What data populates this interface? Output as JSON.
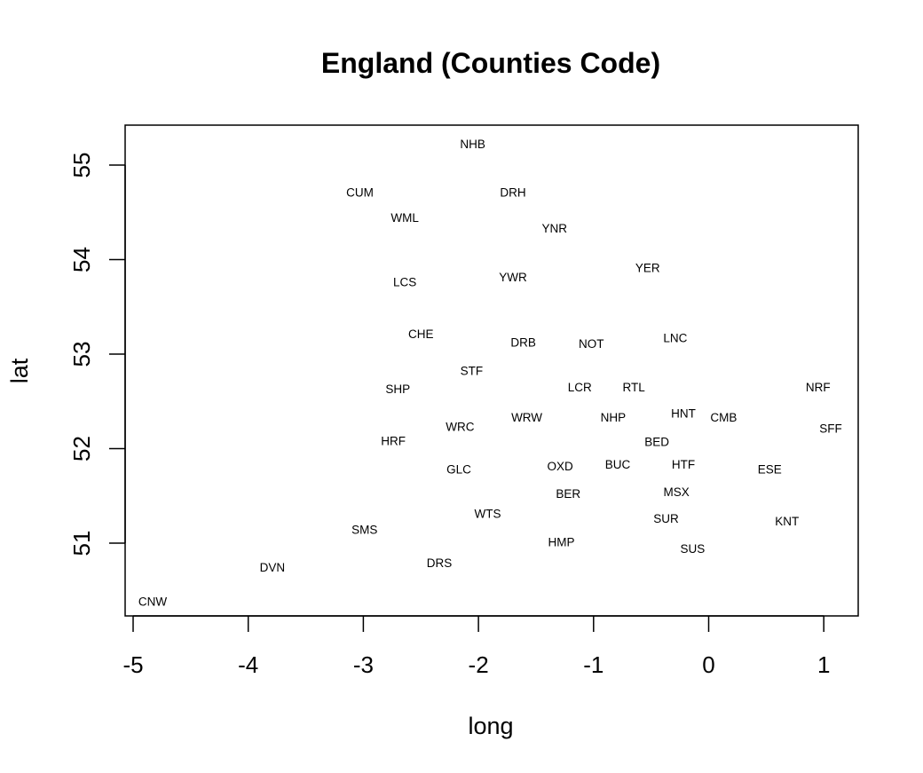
{
  "chart_data": {
    "type": "scatter",
    "title": "England (Counties Code)",
    "xlabel": "long",
    "ylabel": "lat",
    "xlim": [
      -5.0,
      1.0
    ],
    "ylim": [
      50.4,
      55.2
    ],
    "xticks": [
      -5,
      -4,
      -3,
      -2,
      -1,
      0,
      1
    ],
    "yticks": [
      51,
      52,
      53,
      54,
      55
    ],
    "grid": false,
    "legend": "none",
    "marker": "text-label",
    "points": [
      {
        "label": "NHB",
        "x": -2.05,
        "y": 55.22
      },
      {
        "label": "CUM",
        "x": -3.03,
        "y": 54.71
      },
      {
        "label": "DRH",
        "x": -1.7,
        "y": 54.71
      },
      {
        "label": "WML",
        "x": -2.64,
        "y": 54.44
      },
      {
        "label": "YNR",
        "x": -1.34,
        "y": 54.33
      },
      {
        "label": "YER",
        "x": -0.53,
        "y": 53.91
      },
      {
        "label": "YWR",
        "x": -1.7,
        "y": 53.81
      },
      {
        "label": "LCS",
        "x": -2.64,
        "y": 53.76
      },
      {
        "label": "CHE",
        "x": -2.5,
        "y": 53.21
      },
      {
        "label": "LNC",
        "x": -0.29,
        "y": 53.17
      },
      {
        "label": "DRB",
        "x": -1.61,
        "y": 53.12
      },
      {
        "label": "NOT",
        "x": -1.02,
        "y": 53.11
      },
      {
        "label": "STF",
        "x": -2.06,
        "y": 52.82
      },
      {
        "label": "SHP",
        "x": -2.7,
        "y": 52.63
      },
      {
        "label": "LCR",
        "x": -1.12,
        "y": 52.65
      },
      {
        "label": "RTL",
        "x": -0.65,
        "y": 52.65
      },
      {
        "label": "NRF",
        "x": 0.95,
        "y": 52.65
      },
      {
        "label": "HNT",
        "x": -0.22,
        "y": 52.37
      },
      {
        "label": "WRW",
        "x": -1.58,
        "y": 52.33
      },
      {
        "label": "NHP",
        "x": -0.83,
        "y": 52.33
      },
      {
        "label": "CMB",
        "x": 0.13,
        "y": 52.33
      },
      {
        "label": "WRC",
        "x": -2.16,
        "y": 52.23
      },
      {
        "label": "SFF",
        "x": 1.06,
        "y": 52.21
      },
      {
        "label": "HRF",
        "x": -2.74,
        "y": 52.08
      },
      {
        "label": "BED",
        "x": -0.45,
        "y": 52.07
      },
      {
        "label": "BUC",
        "x": -0.79,
        "y": 51.83
      },
      {
        "label": "HTF",
        "x": -0.22,
        "y": 51.83
      },
      {
        "label": "OXD",
        "x": -1.29,
        "y": 51.81
      },
      {
        "label": "GLC",
        "x": -2.17,
        "y": 51.78
      },
      {
        "label": "ESE",
        "x": 0.53,
        "y": 51.78
      },
      {
        "label": "MSX",
        "x": -0.28,
        "y": 51.54
      },
      {
        "label": "BER",
        "x": -1.22,
        "y": 51.52
      },
      {
        "label": "WTS",
        "x": -1.92,
        "y": 51.31
      },
      {
        "label": "SUR",
        "x": -0.37,
        "y": 51.26
      },
      {
        "label": "KNT",
        "x": 0.68,
        "y": 51.23
      },
      {
        "label": "SMS",
        "x": -2.99,
        "y": 51.14
      },
      {
        "label": "HMP",
        "x": -1.28,
        "y": 51.01
      },
      {
        "label": "SUS",
        "x": -0.14,
        "y": 50.94
      },
      {
        "label": "DRS",
        "x": -2.34,
        "y": 50.79
      },
      {
        "label": "DVN",
        "x": -3.79,
        "y": 50.74
      },
      {
        "label": "CNW",
        "x": -4.83,
        "y": 50.38
      }
    ]
  }
}
